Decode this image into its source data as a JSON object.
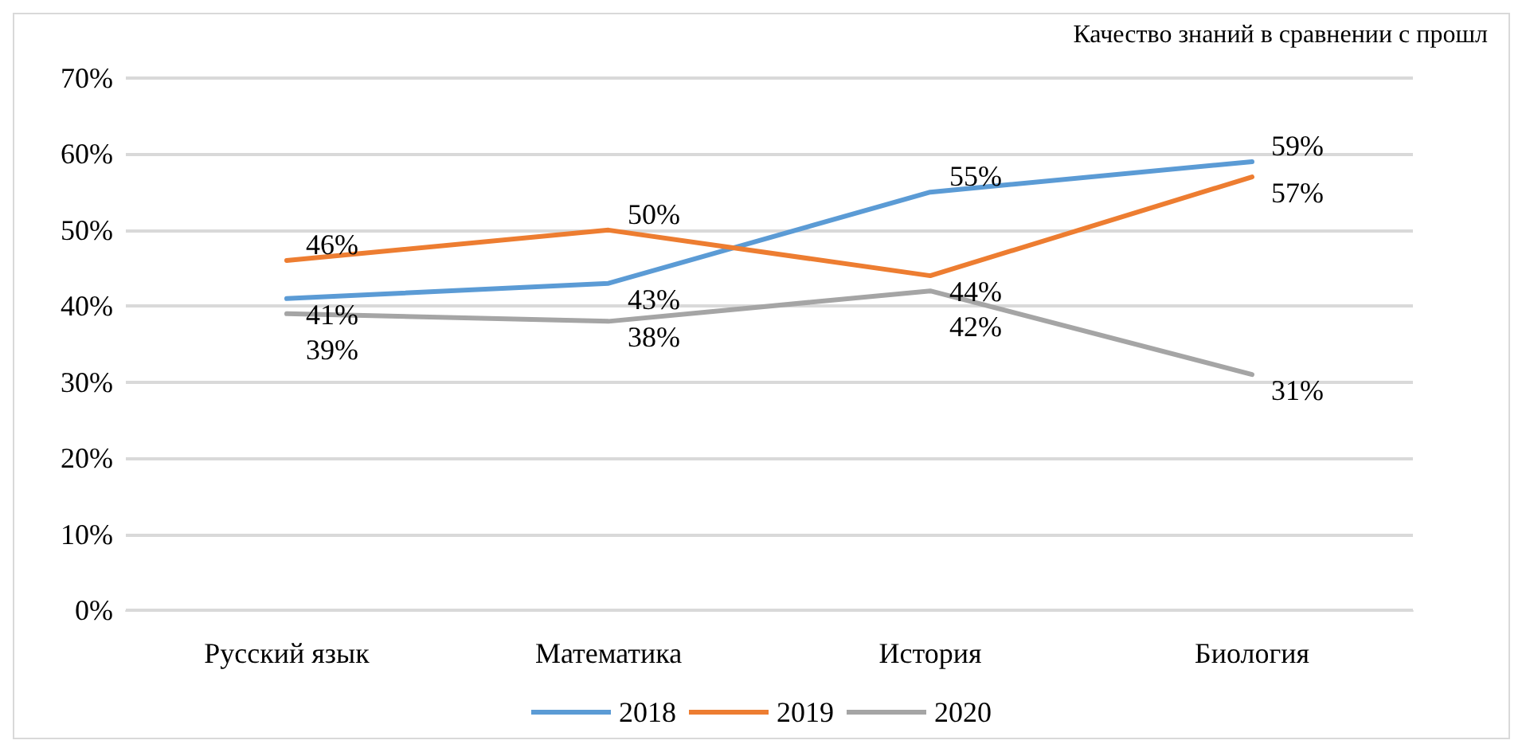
{
  "chart_data": {
    "type": "line",
    "title": "Качество знаний в сравнении с прошл",
    "categories": [
      "Русский язык",
      "Математика",
      "История",
      "Биология"
    ],
    "series": [
      {
        "name": "2018",
        "color": "#5b9bd5",
        "values": [
          41,
          43,
          55,
          59
        ],
        "value_labels": [
          "41%",
          "43%",
          "55%",
          "59%"
        ]
      },
      {
        "name": "2019",
        "color": "#ed7d31",
        "values": [
          46,
          50,
          44,
          57
        ],
        "value_labels": [
          "46%",
          "50%",
          "44%",
          "57%"
        ]
      },
      {
        "name": "2020",
        "color": "#a5a5a5",
        "values": [
          39,
          38,
          42,
          31
        ],
        "value_labels": [
          "39%",
          "38%",
          "42%",
          "31%"
        ]
      }
    ],
    "ylim": [
      0,
      70
    ],
    "yticks": [
      {
        "value": 0,
        "label": "0%"
      },
      {
        "value": 10,
        "label": "10%"
      },
      {
        "value": 20,
        "label": "20%"
      },
      {
        "value": 30,
        "label": "30%"
      },
      {
        "value": 40,
        "label": "40%"
      },
      {
        "value": 50,
        "label": "50%"
      },
      {
        "value": 60,
        "label": "60%"
      },
      {
        "value": 70,
        "label": "70%"
      }
    ],
    "grid": "y",
    "legend": "bottom",
    "marker": "none",
    "line_style": "solid"
  }
}
